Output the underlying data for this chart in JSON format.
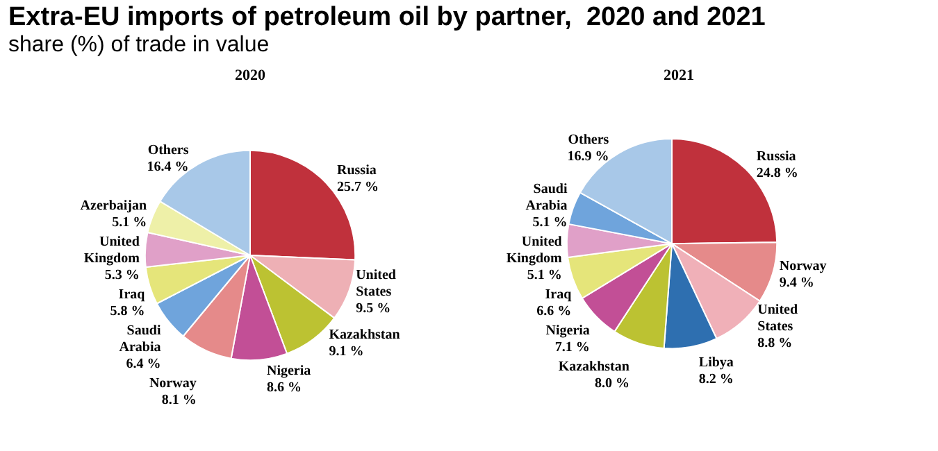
{
  "chart_data": [
    {
      "type": "pie",
      "title": "2020",
      "annotations": [
        "Extra-EU imports of petroleum oil by partner,  2020 and 2021",
        "share (%) of trade in value"
      ],
      "categories": [
        "Russia",
        "United States",
        "Kazakhstan",
        "Nigeria",
        "Norway",
        "Saudi Arabia",
        "Iraq",
        "United Kingdom",
        "Azerbaijan",
        "Others"
      ],
      "values": [
        25.7,
        9.5,
        9.1,
        8.6,
        8.1,
        6.4,
        5.8,
        5.3,
        5.1,
        16.4
      ],
      "value_labels": [
        "25.7 %",
        "9.5 %",
        "9.1 %",
        "8.6 %",
        "8.1 %",
        "6.4 %",
        "5.8 %",
        "5.3 %",
        "5.1 %",
        "16.4 %"
      ],
      "colors": [
        "#c0313c",
        "#eeb0b5",
        "#bcc232",
        "#c24f96",
        "#e58a8a",
        "#6fa4dc",
        "#e5e57a",
        "#e0a0c8",
        "#eef0a8",
        "#a8c8e8"
      ],
      "legend": false
    },
    {
      "type": "pie",
      "title": "2021",
      "categories": [
        "Russia",
        "Norway",
        "United States",
        "Libya",
        "Kazakhstan",
        "Nigeria",
        "Iraq",
        "United Kingdom",
        "Saudi Arabia",
        "Others"
      ],
      "values": [
        24.8,
        9.4,
        8.8,
        8.2,
        8.0,
        7.1,
        6.6,
        5.1,
        5.1,
        16.9
      ],
      "value_labels": [
        "24.8 %",
        "9.4 %",
        "8.8 %",
        "8.2 %",
        "8.0 %",
        "7.1 %",
        "6.6 %",
        "5.1 %",
        "5.1 %",
        "16.9 %"
      ],
      "colors": [
        "#c0313c",
        "#e58a8a",
        "#f0b0b8",
        "#2e6fb0",
        "#bcc232",
        "#c24f96",
        "#e5e57a",
        "#e0a0c8",
        "#6fa4dc",
        "#a8c8e8"
      ],
      "legend": false
    }
  ]
}
